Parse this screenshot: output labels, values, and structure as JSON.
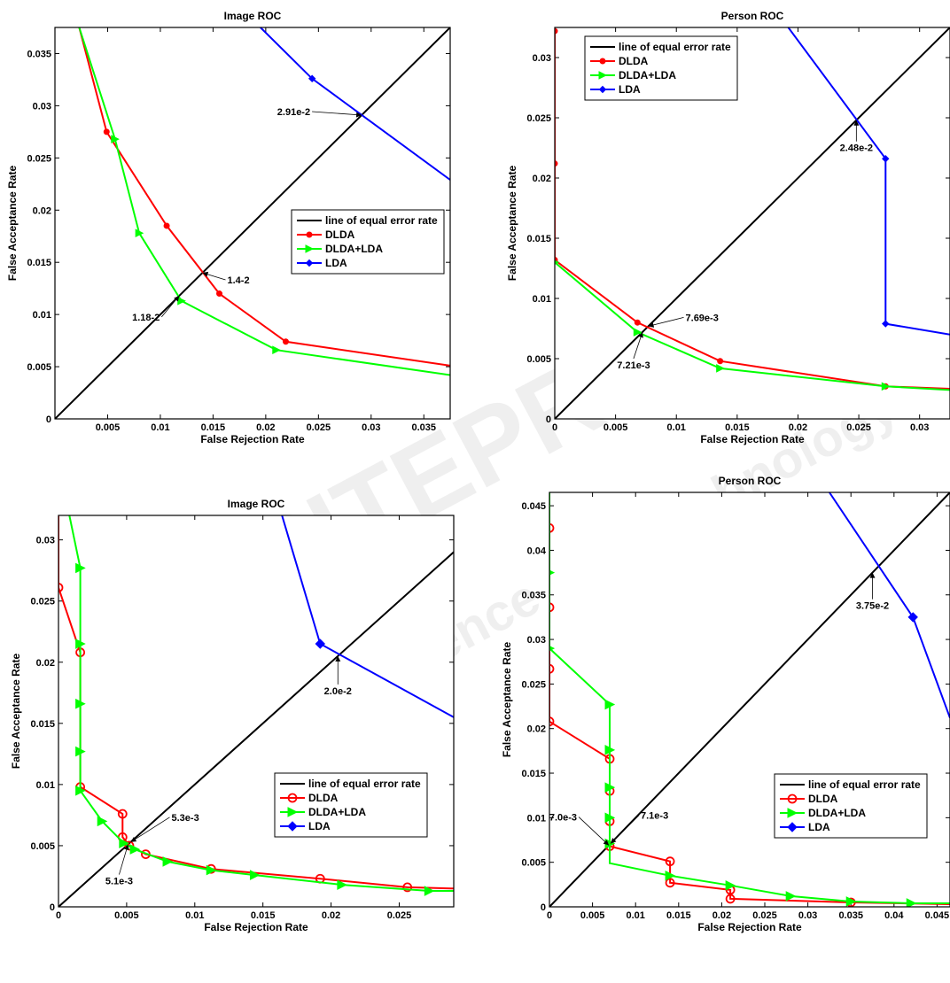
{
  "watermark": {
    "lines": [
      "SCITEPRESS",
      "Science and Technology Publications"
    ]
  },
  "colors": {
    "eer": "#000000",
    "dlda": "#ff0000",
    "dlda_lda": "#00ff00",
    "lda": "#0000ff"
  },
  "chart_data": [
    {
      "type": "line",
      "title": "Image ROC",
      "xlabel": "False Rejection Rate",
      "ylabel": "False Acceptance Rate",
      "xlim": [
        0,
        0.0375
      ],
      "ylim": [
        0,
        0.0375
      ],
      "xticks": [
        0.005,
        0.01,
        0.015,
        0.02,
        0.025,
        0.03,
        0.035
      ],
      "xticklabels": [
        "0.005",
        "0.01",
        "0.015",
        "0.02",
        "0.025",
        "0.03",
        "0.035"
      ],
      "yticks": [
        0,
        0.005,
        0.01,
        0.015,
        0.02,
        0.025,
        0.03,
        0.035
      ],
      "yticklabels": [
        "0",
        "0.005",
        "0.01",
        "0.015",
        "0.02",
        "0.025",
        "0.03",
        "0.035"
      ],
      "legend": "center-right",
      "marker_style": "filled",
      "series": [
        {
          "name": "line of equal error rate",
          "role": "eer",
          "x": [
            0,
            0.0375
          ],
          "y": [
            0,
            0.0375
          ]
        },
        {
          "name": "DLDA",
          "role": "dlda",
          "x": [
            0.0023,
            0.0049,
            0.0106,
            0.0156,
            0.0219,
            0.0375
          ],
          "y": [
            0.0375,
            0.0275,
            0.0185,
            0.012,
            0.0074,
            0.0051
          ],
          "markers": [
            false,
            true,
            true,
            true,
            true,
            false
          ]
        },
        {
          "name": "DLDA+LDA",
          "role": "dlda_lda",
          "x": [
            0.0023,
            0.0057,
            0.008,
            0.012,
            0.021,
            0.0375
          ],
          "y": [
            0.0375,
            0.0268,
            0.0178,
            0.0113,
            0.0066,
            0.0042
          ],
          "markers": [
            false,
            true,
            true,
            true,
            true,
            false
          ]
        },
        {
          "name": "LDA",
          "role": "lda",
          "x": [
            0.0195,
            0.0244,
            0.0375
          ],
          "y": [
            0.0375,
            0.0326,
            0.0229
          ],
          "markers": [
            false,
            true,
            false
          ]
        }
      ],
      "annotations": [
        {
          "text": "2.91e-2",
          "x": 0.0291,
          "y": 0.0291
        },
        {
          "text": "1.4-2",
          "x": 0.014,
          "y": 0.014
        },
        {
          "text": "1.18-2",
          "x": 0.0118,
          "y": 0.0118
        }
      ]
    },
    {
      "type": "line",
      "title": "Person ROC",
      "xlabel": "False Rejection Rate",
      "ylabel": "False Acceptance Rate",
      "xlim": [
        0,
        0.0325
      ],
      "ylim": [
        0,
        0.0325
      ],
      "xticks": [
        0,
        0.005,
        0.01,
        0.015,
        0.02,
        0.025,
        0.03
      ],
      "xticklabels": [
        "0",
        "0.005",
        "0.01",
        "0.015",
        "0.02",
        "0.025",
        "0.03"
      ],
      "yticks": [
        0,
        0.005,
        0.01,
        0.015,
        0.02,
        0.025,
        0.03
      ],
      "yticklabels": [
        "0",
        "0.005",
        "0.01",
        "0.015",
        "0.02",
        "0.025",
        "0.03"
      ],
      "legend": "top-left",
      "marker_style": "filled",
      "series": [
        {
          "name": "line of equal error rate",
          "role": "eer",
          "x": [
            0,
            0.0325
          ],
          "y": [
            0,
            0.0325
          ]
        },
        {
          "name": "DLDA",
          "role": "dlda",
          "x": [
            0,
            0,
            0,
            0.0068,
            0.0136,
            0.0272,
            0.0325
          ],
          "y": [
            0.0322,
            0.0212,
            0.0132,
            0.008,
            0.0048,
            0.0027,
            0.0025
          ],
          "markers": [
            true,
            true,
            true,
            true,
            true,
            true,
            false
          ]
        },
        {
          "name": "DLDA+LDA",
          "role": "dlda_lda",
          "x": [
            0,
            0.0068,
            0.0136,
            0.0272,
            0.0325
          ],
          "y": [
            0.013,
            0.0072,
            0.0042,
            0.0027,
            0.0024
          ],
          "markers": [
            true,
            true,
            true,
            true,
            false
          ]
        },
        {
          "name": "LDA",
          "role": "lda",
          "x": [
            0.0192,
            0.0272,
            0.0272,
            0.0325
          ],
          "y": [
            0.0325,
            0.0216,
            0.0079,
            0.007
          ],
          "markers": [
            false,
            true,
            true,
            false
          ]
        }
      ],
      "annotations": [
        {
          "text": "2.48e-2",
          "x": 0.0248,
          "y": 0.0248
        },
        {
          "text": "7.69e-3",
          "x": 0.00769,
          "y": 0.00769
        },
        {
          "text": "7.21e-3",
          "x": 0.00721,
          "y": 0.00721
        }
      ]
    },
    {
      "type": "line",
      "title": "Image ROC",
      "xlabel": "False Rejection Rate",
      "ylabel": "False Acceptance Rate",
      "xlim": [
        0,
        0.029
      ],
      "ylim": [
        0,
        0.032
      ],
      "xticks": [
        0,
        0.005,
        0.01,
        0.015,
        0.02,
        0.025
      ],
      "xticklabels": [
        "0",
        "0.005",
        "0.01",
        "0.015",
        "0.02",
        "0.025"
      ],
      "yticks": [
        0,
        0.005,
        0.01,
        0.015,
        0.02,
        0.025,
        0.03
      ],
      "yticklabels": [
        "0",
        "0.005",
        "0.01",
        "0.015",
        "0.02",
        "0.025",
        "0.03"
      ],
      "legend": "lower-right",
      "marker_style": "open",
      "series": [
        {
          "name": "line of equal error rate",
          "role": "eer",
          "x": [
            0,
            0.029
          ],
          "y": [
            0,
            0.029
          ]
        },
        {
          "name": "DLDA",
          "role": "dlda",
          "x": [
            0,
            0,
            0.0016,
            0.0016,
            0.0047,
            0.0047,
            0.0052,
            0.0064,
            0.0112,
            0.0192,
            0.0256,
            0.029
          ],
          "y": [
            0.032,
            0.0261,
            0.0208,
            0.0098,
            0.0076,
            0.0057,
            0.005,
            0.0043,
            0.0031,
            0.0023,
            0.0016,
            0.0015
          ],
          "markers": [
            false,
            true,
            true,
            true,
            true,
            true,
            true,
            true,
            true,
            true,
            true,
            false
          ]
        },
        {
          "name": "DLDA+LDA",
          "role": "dlda_lda",
          "x": [
            0.0008,
            0.0016,
            0.0016,
            0.0016,
            0.0016,
            0.0016,
            0.0016,
            0.0032,
            0.0048,
            0.0056,
            0.008,
            0.0112,
            0.0144,
            0.0208,
            0.0272,
            0.029
          ],
          "y": [
            0.032,
            0.0277,
            0.0215,
            0.0166,
            0.0127,
            0.0095,
            0.0095,
            0.007,
            0.0052,
            0.0047,
            0.0037,
            0.003,
            0.0026,
            0.0018,
            0.0013,
            0.0013
          ],
          "markers": [
            false,
            true,
            true,
            true,
            true,
            false,
            true,
            true,
            true,
            true,
            true,
            true,
            true,
            true,
            true,
            false
          ]
        },
        {
          "name": "LDA",
          "role": "lda",
          "x": [
            0.0164,
            0.0192,
            0.029
          ],
          "y": [
            0.032,
            0.0215,
            0.0155
          ],
          "markers": [
            false,
            true,
            false
          ]
        }
      ],
      "annotations": [
        {
          "text": "2.0e-2",
          "x": 0.0205,
          "y": 0.0205
        },
        {
          "text": "5.3e-3",
          "x": 0.0053,
          "y": 0.0053
        },
        {
          "text": "5.1e-3",
          "x": 0.0051,
          "y": 0.0051
        }
      ]
    },
    {
      "type": "line",
      "title": "Person ROC",
      "xlabel": "False Rejection Rate",
      "ylabel": "False Acceptance Rate",
      "xlim": [
        0,
        0.0465
      ],
      "ylim": [
        0,
        0.0465
      ],
      "xticks": [
        0,
        0.005,
        0.01,
        0.015,
        0.02,
        0.025,
        0.03,
        0.035,
        0.04,
        0.045
      ],
      "xticklabels": [
        "0",
        "0.005",
        "0.01",
        "0.015",
        "0.02",
        "0.025",
        "0.03",
        "0.035",
        "0.04",
        "0.045"
      ],
      "yticks": [
        0,
        0.005,
        0.01,
        0.015,
        0.02,
        0.025,
        0.03,
        0.035,
        0.04,
        0.045
      ],
      "yticklabels": [
        "0",
        "0.005",
        "0.01",
        "0.015",
        "0.02",
        "0.025",
        "0.03",
        "0.035",
        "0.04",
        "0.045"
      ],
      "legend": "lower-right",
      "marker_style": "open",
      "series": [
        {
          "name": "line of equal error rate",
          "role": "eer",
          "x": [
            0,
            0.0465
          ],
          "y": [
            0,
            0.0465
          ]
        },
        {
          "name": "DLDA",
          "role": "dlda",
          "x": [
            0,
            0,
            0,
            0,
            0,
            0.007,
            0.007,
            0.007,
            0.007,
            0.014,
            0.014,
            0.021,
            0.021,
            0.035,
            0.0465
          ],
          "y": [
            0.0465,
            0.0425,
            0.0336,
            0.0267,
            0.0208,
            0.0166,
            0.013,
            0.0096,
            0.0068,
            0.0051,
            0.0027,
            0.0019,
            0.0009,
            0.0005,
            0.0003
          ],
          "markers": [
            false,
            true,
            true,
            true,
            true,
            true,
            true,
            true,
            true,
            true,
            true,
            true,
            true,
            true,
            false
          ]
        },
        {
          "name": "DLDA+LDA",
          "role": "dlda_lda",
          "x": [
            0,
            0,
            0,
            0.007,
            0.007,
            0.007,
            0.007,
            0.007,
            0.007,
            0.014,
            0.021,
            0.028,
            0.035,
            0.042,
            0.0465
          ],
          "y": [
            0.0465,
            0.0375,
            0.029,
            0.0227,
            0.0176,
            0.0134,
            0.01,
            0.0071,
            0.0049,
            0.0035,
            0.0024,
            0.0012,
            0.0006,
            0.0004,
            0.0004
          ],
          "markers": [
            false,
            true,
            true,
            true,
            true,
            true,
            true,
            true,
            false,
            true,
            true,
            true,
            true,
            true,
            false
          ]
        },
        {
          "name": "LDA",
          "role": "lda",
          "x": [
            0.0325,
            0.0422,
            0.0465
          ],
          "y": [
            0.0465,
            0.0325,
            0.0212
          ],
          "markers": [
            false,
            true,
            false
          ]
        }
      ],
      "annotations": [
        {
          "text": "3.75e-2",
          "x": 0.0375,
          "y": 0.0375
        },
        {
          "text": "7.0e-3",
          "x": 0.0069,
          "y": 0.0069
        },
        {
          "text": "7.1e-3",
          "x": 0.0071,
          "y": 0.0071
        }
      ]
    }
  ]
}
